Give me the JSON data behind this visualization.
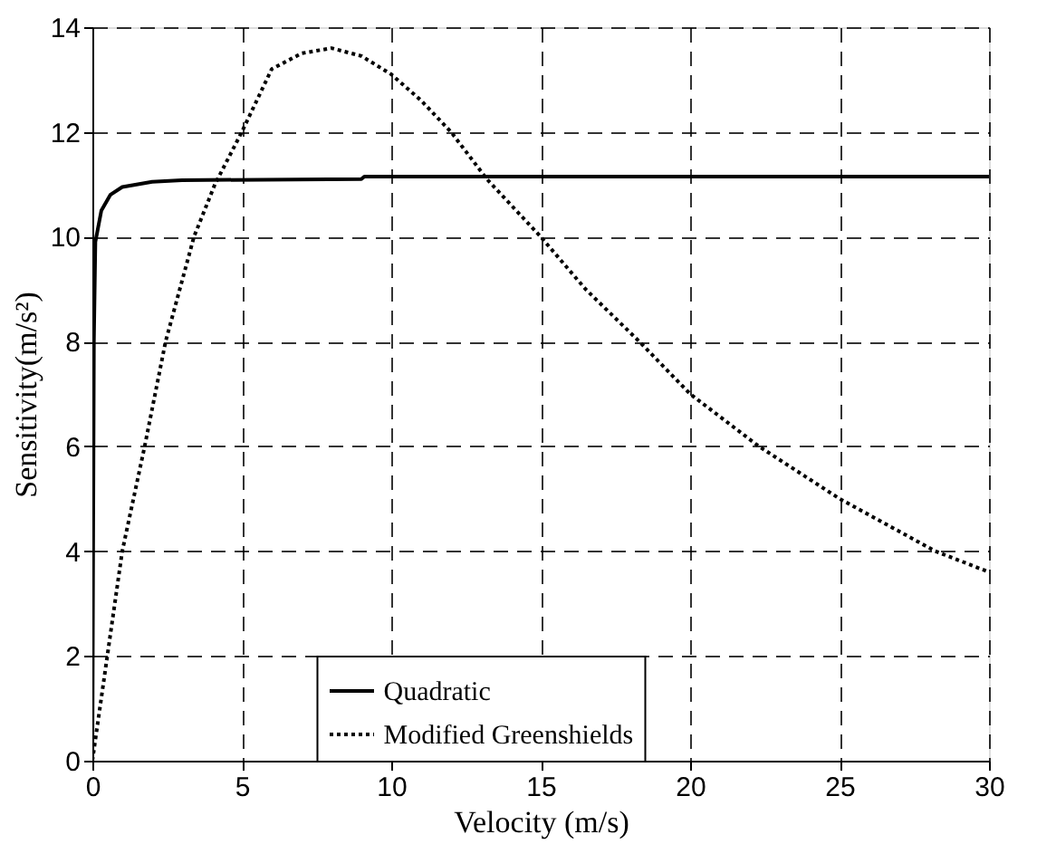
{
  "chart_data": {
    "type": "line",
    "xlabel": "Velocity (m/s)",
    "ylabel": "Sensitivity(m/s²)",
    "xlim": [
      0,
      30
    ],
    "xticks": [
      0,
      5,
      10,
      15,
      20,
      25,
      30
    ],
    "ylim": [
      0,
      14
    ],
    "yticks": [
      0,
      2,
      4,
      6,
      8,
      10,
      12,
      14
    ],
    "grid": true,
    "legend": "bottom",
    "marker": "none",
    "series": [
      {
        "name": "Quadratic",
        "color": "#000000",
        "line_style": "solid",
        "x": [
          0,
          0.05,
          0.1,
          0.3,
          0.6,
          1,
          2,
          3,
          9,
          9.1,
          30
        ],
        "values": [
          0,
          8,
          9.9,
          10.5,
          10.8,
          10.95,
          11.05,
          11.08,
          11.1,
          11.15,
          11.15
        ]
      },
      {
        "name": "Modified Greenshields",
        "color": "#000000",
        "line_style": "dotted",
        "x": [
          0,
          0.5,
          1,
          1.75,
          2.45,
          3.4,
          4.1,
          5,
          6,
          7,
          8,
          9,
          10,
          11,
          12,
          13.2,
          15,
          16.5,
          18.3,
          20,
          22.3,
          25,
          28.2,
          30
        ],
        "values": [
          0,
          2,
          4,
          6,
          8,
          10,
          11,
          12,
          13.2,
          13.5,
          13.6,
          13.45,
          13.1,
          12.6,
          12,
          11.1,
          10,
          9,
          8,
          7,
          6,
          5,
          4,
          3.6
        ]
      }
    ]
  }
}
